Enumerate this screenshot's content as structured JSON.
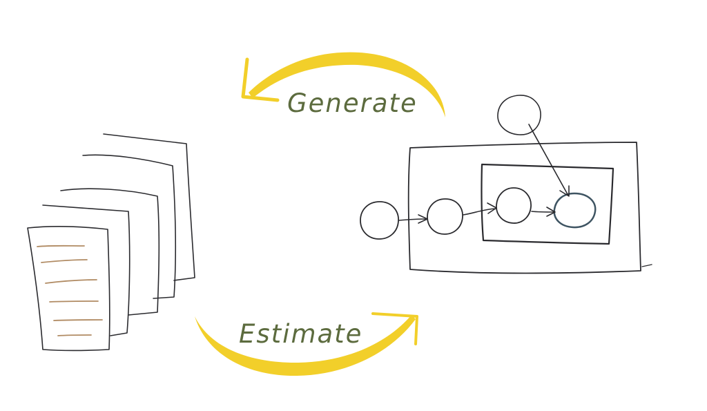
{
  "labels": {
    "generate": "Generate",
    "estimate": "Estimate"
  },
  "colors": {
    "arrow": "#f2cf2a",
    "label_text": "#5c6b3e",
    "ink": "#2a2a2e",
    "doc_lines": "#b08a62",
    "observed_node": "#657a86"
  },
  "documents": {
    "count": 5
  },
  "graphical_model": {
    "nodes": [
      "hyper-node",
      "prior-node",
      "latent-node",
      "topic-node",
      "observed-word-node"
    ],
    "plates": [
      "outer-plate",
      "inner-plate"
    ]
  }
}
